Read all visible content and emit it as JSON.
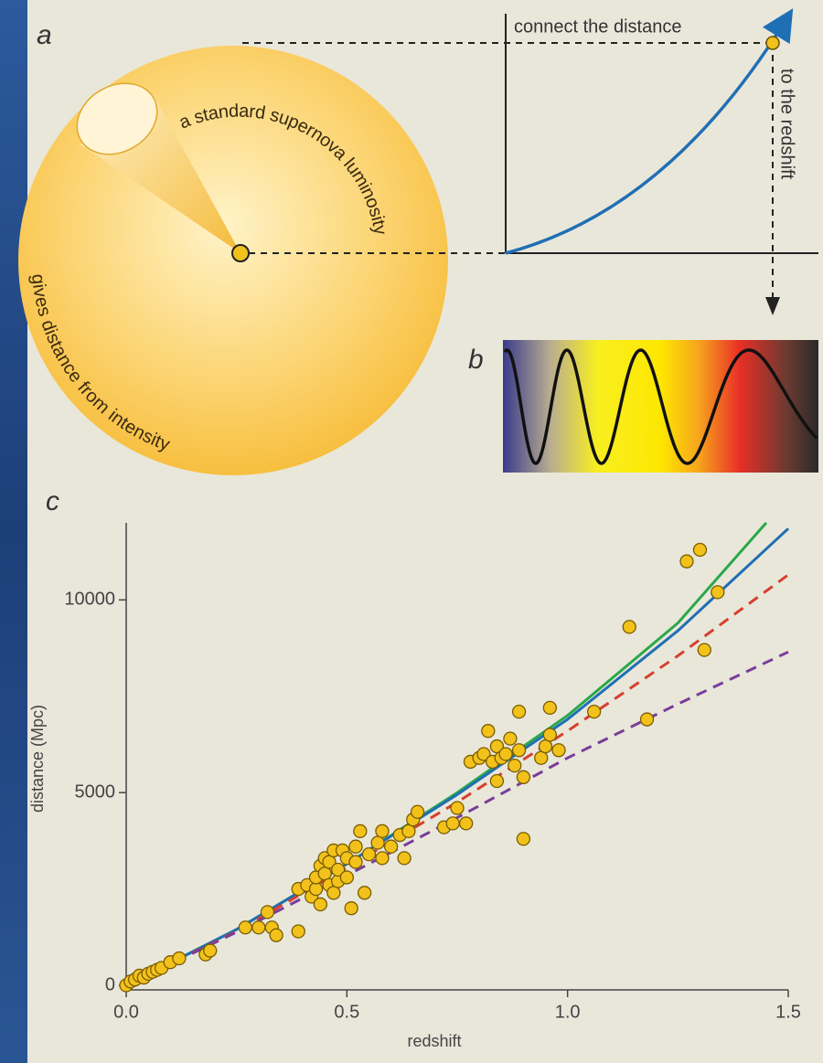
{
  "diagram": {
    "label_a": "a",
    "luminosity_text": "a standard supernova luminosity",
    "distance_text": "gives distance from intensity",
    "connect_text": "connect the distance",
    "redshift_text": "to the redshift",
    "label_b": "b"
  },
  "chart_data": {
    "type": "scatter",
    "label": "c",
    "xlabel": "redshift",
    "ylabel": "distance (Mpc)",
    "color": "#f2c21b",
    "x": [
      0,
      0.01,
      0.02,
      0.03,
      0.04,
      0.05,
      0.06,
      0.07,
      0.08,
      0.1,
      0.12,
      0.18,
      0.19,
      0.27,
      0.3,
      0.32,
      0.33,
      0.34,
      0.39,
      0.39,
      0.41,
      0.42,
      0.43,
      0.43,
      0.44,
      0.44,
      0.45,
      0.45,
      0.46,
      0.46,
      0.47,
      0.47,
      0.48,
      0.48,
      0.49,
      0.5,
      0.5,
      0.51,
      0.52,
      0.52,
      0.53,
      0.54,
      0.55,
      0.57,
      0.58,
      0.58,
      0.6,
      0.62,
      0.63,
      0.64,
      0.65,
      0.66,
      0.72,
      0.74,
      0.75,
      0.77,
      0.78,
      0.8,
      0.81,
      0.82,
      0.83,
      0.84,
      0.84,
      0.85,
      0.86,
      0.87,
      0.88,
      0.89,
      0.89,
      0.9,
      0.9,
      0.94,
      0.95,
      0.96,
      0.96,
      0.98,
      1.06,
      1.14,
      1.18,
      1.27,
      1.3,
      1.31,
      1.34
    ],
    "values": [
      0,
      100,
      150,
      250,
      200,
      300,
      350,
      400,
      450,
      600,
      700,
      800,
      900,
      1500,
      1500,
      1900,
      1500,
      1300,
      1400,
      2500,
      2600,
      2300,
      2500,
      2800,
      3100,
      2100,
      3300,
      2900,
      2600,
      3200,
      3500,
      2400,
      2700,
      3000,
      3500,
      3300,
      2800,
      2000,
      3200,
      3600,
      4000,
      2400,
      3400,
      3700,
      4000,
      3300,
      3600,
      3900,
      3300,
      4000,
      4300,
      4500,
      4100,
      4200,
      4600,
      4200,
      5800,
      5900,
      6000,
      6600,
      5800,
      6200,
      5300,
      5900,
      6000,
      6400,
      5700,
      6100,
      7100,
      3800,
      5400,
      5900,
      6200,
      6500,
      7200,
      6100,
      7100,
      9300,
      6900,
      11000,
      11300,
      8700,
      10200
    ],
    "lines": [
      {
        "color": "#2aa84a",
        "dash": false,
        "x": [
          0,
          0.25,
          0.5,
          0.75,
          1.0,
          1.25,
          1.45
        ],
        "values": [
          0,
          1450,
          3150,
          5000,
          7000,
          9400,
          12000
        ]
      },
      {
        "color": "#1f6fb5",
        "dash": false,
        "x": [
          0,
          0.25,
          0.5,
          0.75,
          1.0,
          1.25,
          1.5
        ],
        "values": [
          0,
          1450,
          3150,
          4950,
          6900,
          9200,
          11850
        ]
      },
      {
        "color": "#d6402f",
        "dash": true,
        "x": [
          0,
          0.25,
          0.5,
          0.75,
          1.0,
          1.25,
          1.5
        ],
        "values": [
          0,
          1400,
          3050,
          4750,
          6600,
          8550,
          10650
        ]
      },
      {
        "color": "#7a3d9a",
        "dash": true,
        "x": [
          0,
          0.25,
          0.5,
          0.75,
          1.0,
          1.25,
          1.5
        ],
        "values": [
          0,
          1380,
          2850,
          4350,
          5900,
          7300,
          8650
        ]
      }
    ],
    "xlim": [
      0,
      1.5
    ],
    "ylim": [
      0,
      12000
    ],
    "xticks": [
      {
        "value": 0,
        "label": "0.0"
      },
      0.5,
      {
        "value": 1,
        "label": "1.0"
      },
      1.5
    ],
    "yticks": [
      0,
      5000,
      10000
    ]
  }
}
